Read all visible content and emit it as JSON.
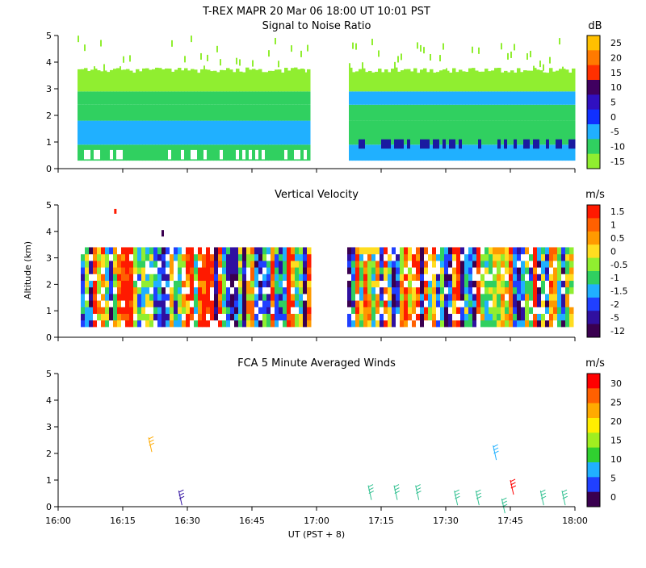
{
  "header": {
    "title": "T-REX   MAPR 20 Mar 06   18:00 UT   10:01   PST"
  },
  "x_axis": {
    "label": "UT  (PST + 8)",
    "ticks": [
      "16:00",
      "16:15",
      "16:30",
      "16:45",
      "17:00",
      "17:15",
      "17:30",
      "17:45",
      "18:00"
    ]
  },
  "y_axis": {
    "label": "Altitude (km)",
    "ticks": [
      "0",
      "1",
      "2",
      "3",
      "4",
      "5"
    ]
  },
  "colors": {
    "white": "#ffffff",
    "purple_dark": "#3a0050",
    "navy": "#1a1aa0",
    "blue": "#2040ff",
    "sky": "#20b0ff",
    "green": "#30d060",
    "lime": "#90ee30",
    "yellow": "#ffee20",
    "gold": "#ffc000",
    "orange": "#ff7a00",
    "red": "#ff1a00"
  },
  "chart_data": [
    {
      "type": "heatmap",
      "title": "Signal to Noise Ratio",
      "unit": "dB",
      "xlabel": "",
      "ylabel": "",
      "ylim": [
        0,
        5
      ],
      "colorbar_labels": [
        "25",
        "20",
        "15",
        "10",
        "5",
        "0",
        "-5",
        "-10",
        "-15"
      ],
      "colorbar_colors": [
        "#ffc000",
        "#ff7a00",
        "#ff3000",
        "#400060",
        "#3010c0",
        "#1030ff",
        "#20b0ff",
        "#30d060",
        "#90ee30"
      ],
      "gap": [
        "17:00",
        "17:05"
      ],
      "bands": [
        {
          "alt": [
            0.3,
            0.9
          ],
          "color": "#30d060"
        },
        {
          "alt": [
            0.9,
            1.8
          ],
          "color": "#20b0ff"
        },
        {
          "alt": [
            1.8,
            2.3
          ],
          "color": "#30d060"
        },
        {
          "alt": [
            2.3,
            3.0
          ],
          "color": "#30d060"
        },
        {
          "alt": [
            3.0,
            3.8
          ],
          "color": "#90ee30"
        }
      ]
    },
    {
      "type": "heatmap",
      "title": "Vertical Velocity",
      "unit": "m/s",
      "xlabel": "",
      "ylabel": "Altitude (km)",
      "ylim": [
        0,
        5
      ],
      "colorbar_labels": [
        "1.5",
        "1",
        "0.5",
        "0",
        "-0.5",
        "-1",
        "-1.5",
        "-2",
        "-5",
        "-12"
      ],
      "colorbar_colors": [
        "#ff1a00",
        "#ff6000",
        "#ff9a00",
        "#ffdd20",
        "#90ee30",
        "#30d060",
        "#20b0ff",
        "#2040ff",
        "#3010a0",
        "#3a0050"
      ],
      "gap": [
        "17:00",
        "17:05"
      ]
    },
    {
      "type": "scatter",
      "title": "FCA 5 Minute Averaged Winds",
      "unit": "m/s",
      "xlabel": "UT  (PST + 8)",
      "ylabel": "",
      "ylim": [
        0,
        5
      ],
      "colorbar_labels": [
        "30",
        "25",
        "20",
        "15",
        "10",
        "5",
        "0"
      ],
      "colorbar_colors": [
        "#ff0000",
        "#ff6000",
        "#ffaa00",
        "#ffee00",
        "#a0ee20",
        "#30d030",
        "#20b0ff",
        "#2040ff",
        "#3a0050"
      ],
      "barbs": [
        {
          "t": "16:21",
          "alt": 2.6,
          "color": "#ffaa00"
        },
        {
          "t": "16:28",
          "alt": 0.6,
          "color": "#3010a0"
        },
        {
          "t": "17:12",
          "alt": 0.8,
          "color": "#30c090"
        },
        {
          "t": "17:18",
          "alt": 0.8,
          "color": "#30c090"
        },
        {
          "t": "17:23",
          "alt": 0.8,
          "color": "#30c090"
        },
        {
          "t": "17:32",
          "alt": 0.6,
          "color": "#30c090"
        },
        {
          "t": "17:37",
          "alt": 0.6,
          "color": "#30c090"
        },
        {
          "t": "17:41",
          "alt": 2.3,
          "color": "#20b0ff"
        },
        {
          "t": "17:43",
          "alt": 0.3,
          "color": "#30c090"
        },
        {
          "t": "17:45",
          "alt": 1.0,
          "color": "#ff0000"
        },
        {
          "t": "17:52",
          "alt": 0.6,
          "color": "#30c090"
        },
        {
          "t": "17:57",
          "alt": 0.6,
          "color": "#30c090"
        }
      ]
    }
  ]
}
